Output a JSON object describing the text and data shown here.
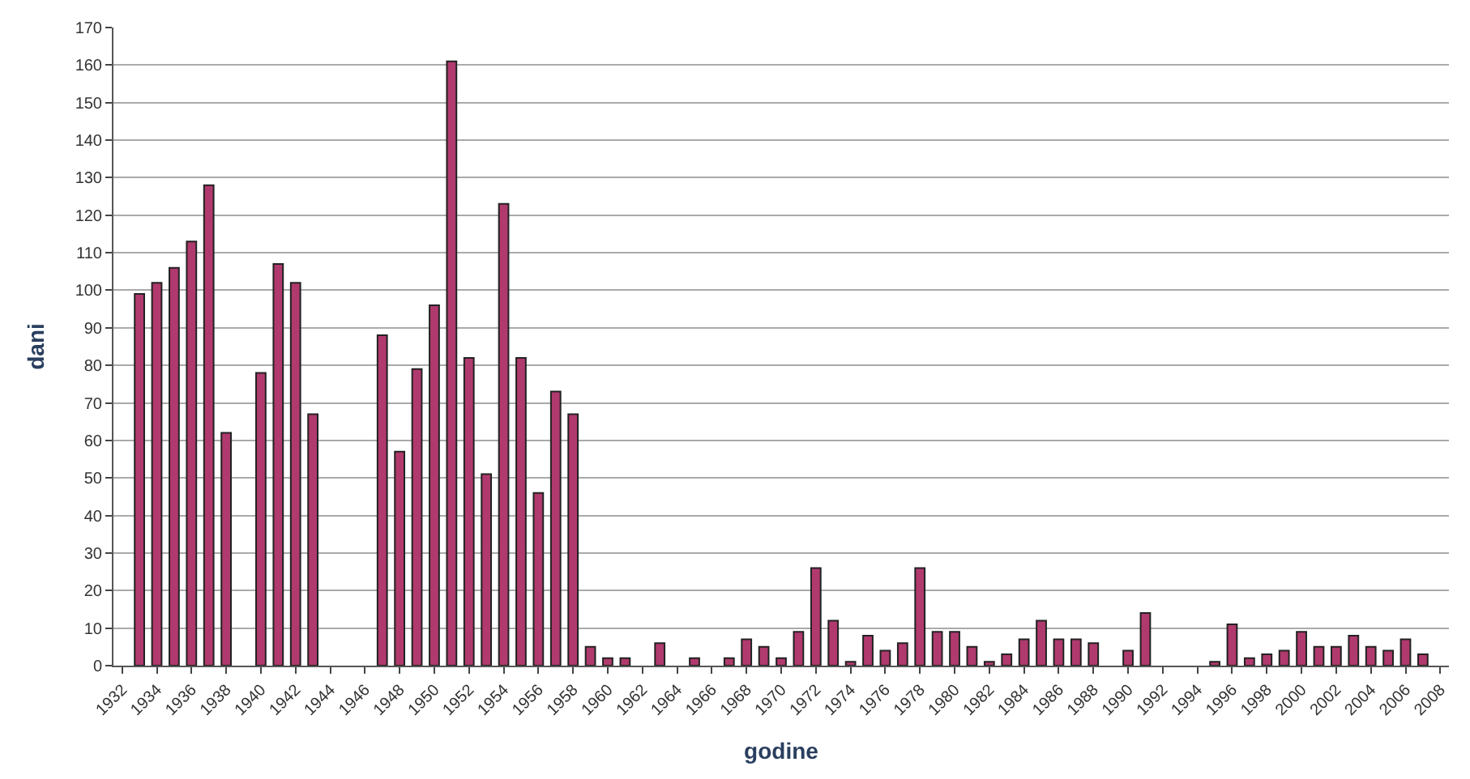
{
  "chart_data": {
    "type": "bar",
    "xlabel": "godine",
    "ylabel": "dani",
    "categories": [
      "1932",
      null,
      "1934",
      null,
      "1936",
      null,
      "1938",
      null,
      "1940",
      null,
      "1942",
      null,
      "1944",
      null,
      "1946",
      null,
      "1948",
      null,
      "1950",
      null,
      "1952",
      null,
      "1954",
      null,
      "1956",
      null,
      "1958",
      null,
      "1960",
      null,
      "1962",
      null,
      "1964",
      null,
      "1966",
      null,
      "1968",
      null,
      "1970",
      null,
      "1972",
      null,
      "1974",
      null,
      "1976",
      null,
      "1978",
      null,
      "1980",
      null,
      "1982",
      null,
      "1984",
      null,
      "1986",
      null,
      "1988",
      null,
      "1990",
      null,
      "1992",
      null,
      "1994",
      null,
      "1996",
      null,
      "1998",
      null,
      "2000",
      null,
      "2002",
      null,
      "2004",
      null,
      "2006",
      null,
      "2008"
    ],
    "values": [
      0,
      99,
      102,
      106,
      113,
      128,
      62,
      0,
      78,
      107,
      102,
      67,
      0,
      0,
      0,
      88,
      57,
      79,
      96,
      161,
      82,
      51,
      123,
      82,
      46,
      73,
      67,
      5,
      2,
      2,
      0,
      6,
      0,
      2,
      0,
      2,
      7,
      5,
      2,
      9,
      26,
      12,
      1,
      8,
      4,
      6,
      26,
      9,
      9,
      5,
      1,
      3,
      7,
      12,
      7,
      7,
      6,
      0,
      4,
      14,
      0,
      0,
      0,
      1,
      11,
      2,
      3,
      4,
      9,
      5,
      5,
      8,
      5,
      4,
      7,
      3,
      null
    ],
    "color": "#b03a6e",
    "ylim": [
      0,
      170
    ],
    "yticks": [
      0,
      10,
      20,
      30,
      40,
      50,
      60,
      70,
      80,
      90,
      100,
      110,
      120,
      130,
      140,
      150,
      160,
      170
    ],
    "grid": "y",
    "legend": false
  }
}
